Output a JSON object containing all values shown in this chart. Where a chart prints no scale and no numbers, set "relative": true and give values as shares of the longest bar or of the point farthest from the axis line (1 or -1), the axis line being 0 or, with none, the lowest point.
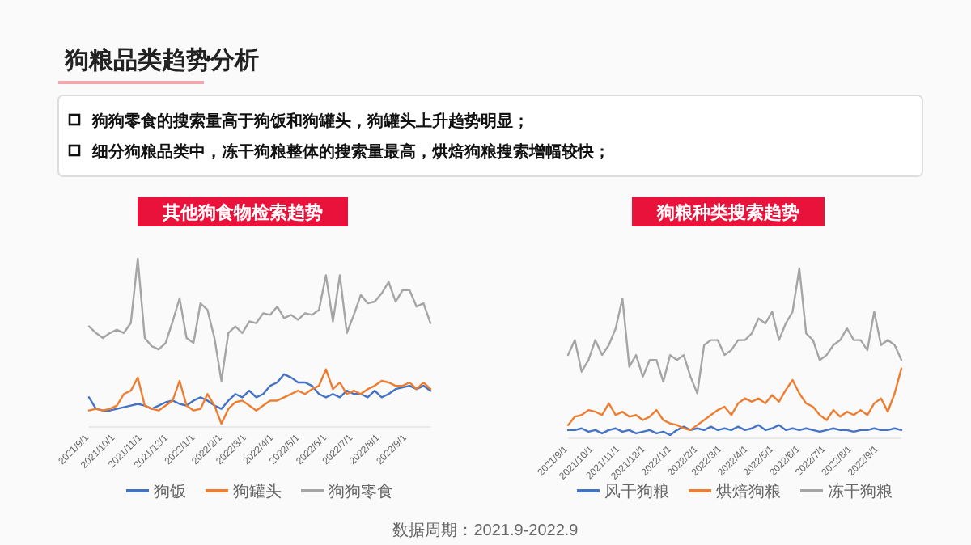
{
  "chart_data": [
    {
      "type": "other",
      "title": "狗粮品类趋势分析",
      "annotations": [
        "狗狗零食的搜索量高于狗饭和狗罐头，狗罐头上升趋势明显；",
        "细分狗粮品类中，冻干狗粮整体的搜索量最高，烘焙狗粮搜索增幅较快；",
        "数据周期：2021.9-2022.9"
      ]
    },
    {
      "type": "line",
      "title": "其他狗食物检索趋势",
      "relative": true,
      "legend": "bottom",
      "tick_labels": "x",
      "x": [
        "2021-09-01",
        "2021-09-09",
        "2021-09-17",
        "2021-09-25",
        "2021-10-03",
        "2021-10-11",
        "2021-10-19",
        "2021-10-27",
        "2021-11-04",
        "2021-11-12",
        "2021-11-20",
        "2021-11-28",
        "2021-12-06",
        "2021-12-14",
        "2021-12-22",
        "2021-12-30",
        "2022-01-07",
        "2022-01-15",
        "2022-01-23",
        "2022-01-31",
        "2022-02-08",
        "2022-02-16",
        "2022-02-24",
        "2022-03-04",
        "2022-03-12",
        "2022-03-20",
        "2022-03-28",
        "2022-04-05",
        "2022-04-13",
        "2022-04-21",
        "2022-04-29",
        "2022-05-07",
        "2022-05-15",
        "2022-05-23",
        "2022-05-31",
        "2022-06-08",
        "2022-06-16",
        "2022-06-24",
        "2022-07-02",
        "2022-07-10",
        "2022-07-18",
        "2022-07-26",
        "2022-08-03",
        "2022-08-11",
        "2022-08-19",
        "2022-08-27",
        "2022-09-04",
        "2022-09-12",
        "2022-09-20",
        "2022-09-28"
      ],
      "xticks": [
        {
          "value": "2021-09-01",
          "label": "2021/9/1"
        },
        {
          "value": "2021-10-01",
          "label": "2021/10/1"
        },
        {
          "value": "2021-11-01",
          "label": "2021/11/1"
        },
        {
          "value": "2021-12-01",
          "label": "2021/12/1"
        },
        {
          "value": "2022-01-01",
          "label": "2022/1/1"
        },
        {
          "value": "2022-02-01",
          "label": "2022/2/1"
        },
        {
          "value": "2022-03-01",
          "label": "2022/3/1"
        },
        {
          "value": "2022-04-01",
          "label": "2022/4/1"
        },
        {
          "value": "2022-05-01",
          "label": "2022/5/1"
        },
        {
          "value": "2022-06-01",
          "label": "2022/6/1"
        },
        {
          "value": "2022-07-01",
          "label": "2022/7/1"
        },
        {
          "value": "2022-08-01",
          "label": "2022/8/1"
        },
        {
          "value": "2022-09-01",
          "label": "2022/9/1"
        }
      ],
      "xlim": [
        "2021-09-01",
        "2022-09-28"
      ],
      "series": [
        {
          "name": "狗饭",
          "color": "#4472c4",
          "values": [
            0.16,
            0.09,
            0.08,
            0.08,
            0.09,
            0.1,
            0.11,
            0.12,
            0.11,
            0.09,
            0.11,
            0.13,
            0.14,
            0.12,
            0.11,
            0.14,
            0.16,
            0.14,
            0.11,
            0.09,
            0.14,
            0.18,
            0.16,
            0.2,
            0.16,
            0.18,
            0.23,
            0.25,
            0.3,
            0.28,
            0.25,
            0.25,
            0.23,
            0.18,
            0.16,
            0.18,
            0.16,
            0.2,
            0.18,
            0.18,
            0.16,
            0.2,
            0.16,
            0.18,
            0.21,
            0.22,
            0.23,
            0.21,
            0.23,
            0.2
          ]
        },
        {
          "name": "狗罐头",
          "color": "#ed7d31",
          "values": [
            0.08,
            0.09,
            0.08,
            0.09,
            0.11,
            0.18,
            0.2,
            0.28,
            0.11,
            0.09,
            0.08,
            0.11,
            0.14,
            0.26,
            0.11,
            0.08,
            0.09,
            0.18,
            0.11,
            0,
            0.09,
            0.13,
            0.14,
            0.11,
            0.08,
            0.11,
            0.14,
            0.14,
            0.16,
            0.18,
            0.2,
            0.18,
            0.21,
            0.23,
            0.33,
            0.21,
            0.25,
            0.18,
            0.2,
            0.18,
            0.21,
            0.23,
            0.26,
            0.25,
            0.23,
            0.23,
            0.25,
            0.21,
            0.25,
            0.21
          ]
        },
        {
          "name": "狗狗零食",
          "color": "#a5a5a5",
          "values": [
            0.59,
            0.55,
            0.52,
            0.55,
            0.57,
            0.55,
            0.61,
            1,
            0.52,
            0.47,
            0.45,
            0.49,
            0.62,
            0.76,
            0.52,
            0.49,
            0.73,
            0.69,
            0.52,
            0.26,
            0.55,
            0.59,
            0.55,
            0.62,
            0.61,
            0.67,
            0.66,
            0.71,
            0.64,
            0.66,
            0.63,
            0.67,
            0.66,
            0.69,
            0.9,
            0.62,
            0.9,
            0.55,
            0.66,
            0.78,
            0.73,
            0.74,
            0.79,
            0.86,
            0.74,
            0.81,
            0.81,
            0.71,
            0.73,
            0.61
          ]
        }
      ]
    },
    {
      "type": "line",
      "title": "狗粮种类搜索趋势",
      "relative": true,
      "legend": "bottom",
      "tick_labels": "x",
      "x": [
        "2021-09-01",
        "2021-09-09",
        "2021-09-17",
        "2021-09-25",
        "2021-10-03",
        "2021-10-11",
        "2021-10-19",
        "2021-10-27",
        "2021-11-04",
        "2021-11-12",
        "2021-11-20",
        "2021-11-28",
        "2021-12-06",
        "2021-12-14",
        "2021-12-22",
        "2021-12-30",
        "2022-01-07",
        "2022-01-15",
        "2022-01-23",
        "2022-01-31",
        "2022-02-08",
        "2022-02-16",
        "2022-02-24",
        "2022-03-04",
        "2022-03-12",
        "2022-03-20",
        "2022-03-28",
        "2022-04-05",
        "2022-04-13",
        "2022-04-21",
        "2022-04-29",
        "2022-05-07",
        "2022-05-15",
        "2022-05-23",
        "2022-05-31",
        "2022-06-08",
        "2022-06-16",
        "2022-06-24",
        "2022-07-02",
        "2022-07-10",
        "2022-07-18",
        "2022-07-26",
        "2022-08-03",
        "2022-08-11",
        "2022-08-19",
        "2022-08-27",
        "2022-09-04",
        "2022-09-12",
        "2022-09-20",
        "2022-09-28"
      ],
      "xticks": [
        {
          "value": "2021-09-01",
          "label": "2021/9/1"
        },
        {
          "value": "2021-10-01",
          "label": "2021/10/1"
        },
        {
          "value": "2021-11-01",
          "label": "2021/11/1"
        },
        {
          "value": "2021-12-01",
          "label": "2021/12/1"
        },
        {
          "value": "2022-01-01",
          "label": "2022/1/1"
        },
        {
          "value": "2022-02-01",
          "label": "2022/2/1"
        },
        {
          "value": "2022-03-01",
          "label": "2022/3/1"
        },
        {
          "value": "2022-04-01",
          "label": "2022/4/1"
        },
        {
          "value": "2022-05-01",
          "label": "2022/5/1"
        },
        {
          "value": "2022-06-01",
          "label": "2022/6/1"
        },
        {
          "value": "2022-07-01",
          "label": "2022/7/1"
        },
        {
          "value": "2022-08-01",
          "label": "2022/8/1"
        },
        {
          "value": "2022-09-01",
          "label": "2022/9/1"
        }
      ],
      "xlim": [
        "2021-09-01",
        "2022-09-28"
      ],
      "series": [
        {
          "name": "风干狗粮",
          "color": "#4472c4",
          "values": [
            0.03,
            0.03,
            0.04,
            0.02,
            0.03,
            0.01,
            0.03,
            0.04,
            0.02,
            0.03,
            0.01,
            0.02,
            0.03,
            0.01,
            0.02,
            0,
            0.03,
            0.05,
            0.03,
            0.04,
            0.03,
            0.05,
            0.03,
            0.04,
            0.03,
            0.05,
            0.03,
            0.04,
            0.06,
            0.03,
            0.04,
            0.06,
            0.03,
            0.04,
            0.03,
            0.04,
            0.03,
            0.02,
            0.03,
            0.04,
            0.03,
            0.03,
            0.02,
            0.03,
            0.03,
            0.04,
            0.03,
            0.03,
            0.04,
            0.03
          ]
        },
        {
          "name": "烘焙狗粮",
          "color": "#ed7d31",
          "values": [
            0.06,
            0.11,
            0.12,
            0.15,
            0.14,
            0.12,
            0.19,
            0.12,
            0.14,
            0.11,
            0.12,
            0.09,
            0.11,
            0.15,
            0.09,
            0.07,
            0.06,
            0.04,
            0.03,
            0.06,
            0.09,
            0.12,
            0.15,
            0.17,
            0.12,
            0.19,
            0.22,
            0.2,
            0.22,
            0.19,
            0.24,
            0.2,
            0.27,
            0.33,
            0.25,
            0.19,
            0.17,
            0.12,
            0.09,
            0.15,
            0.11,
            0.14,
            0.12,
            0.15,
            0.12,
            0.19,
            0.22,
            0.14,
            0.25,
            0.4
          ]
        },
        {
          "name": "冻干狗粮",
          "color": "#a5a5a5",
          "values": [
            0.48,
            0.57,
            0.38,
            0.45,
            0.57,
            0.48,
            0.54,
            0.64,
            0.82,
            0.41,
            0.48,
            0.35,
            0.45,
            0.45,
            0.32,
            0.48,
            0.45,
            0.48,
            0.35,
            0.25,
            0.54,
            0.57,
            0.57,
            0.48,
            0.51,
            0.57,
            0.57,
            0.61,
            0.7,
            0.67,
            0.74,
            0.57,
            0.67,
            0.74,
            1,
            0.61,
            0.57,
            0.45,
            0.48,
            0.54,
            0.57,
            0.64,
            0.57,
            0.57,
            0.51,
            0.74,
            0.54,
            0.57,
            0.54,
            0.45
          ]
        }
      ]
    }
  ]
}
